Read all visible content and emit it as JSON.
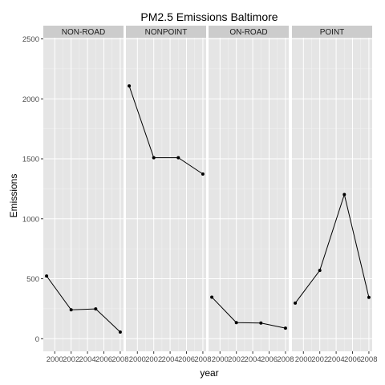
{
  "chart_data": {
    "type": "line",
    "title": "PM2.5 Emissions Baltimore",
    "xlabel": "year",
    "ylabel": "Emissions",
    "x": [
      1999,
      2002,
      2005,
      2008
    ],
    "x_ticks": [
      2000,
      2002,
      2004,
      2006,
      2008
    ],
    "x_tick_labels": [
      "2000",
      "2002",
      "2004",
      "2006",
      "2008"
    ],
    "xlim": [
      1998.6,
      2008.4
    ],
    "y_ticks": [
      0,
      500,
      1000,
      1500,
      2000,
      2500
    ],
    "y_tick_labels": [
      "0",
      "500",
      "1000",
      "1500",
      "2000",
      "2500"
    ],
    "ylim": [
      -105,
      2510
    ],
    "grid": true,
    "legend": "none",
    "panels": [
      {
        "name": "NON-ROAD",
        "values": [
          522.9,
          240.8,
          248.9,
          55.8
        ]
      },
      {
        "name": "NONPOINT",
        "values": [
          2107.6,
          1509.5,
          1509.5,
          1373.2
        ]
      },
      {
        "name": "ON-ROAD",
        "values": [
          346.8,
          134.3,
          130.4,
          88.3
        ]
      },
      {
        "name": "POINT",
        "values": [
          296.8,
          569.3,
          1202.5,
          345.0
        ]
      }
    ],
    "colors": {
      "panel_bg": "#e5e5e5",
      "strip_bg": "#cccccc",
      "grid_major": "#ffffff",
      "grid_minor": "#f2f2f2",
      "line": "#000000",
      "point": "#000000"
    }
  }
}
